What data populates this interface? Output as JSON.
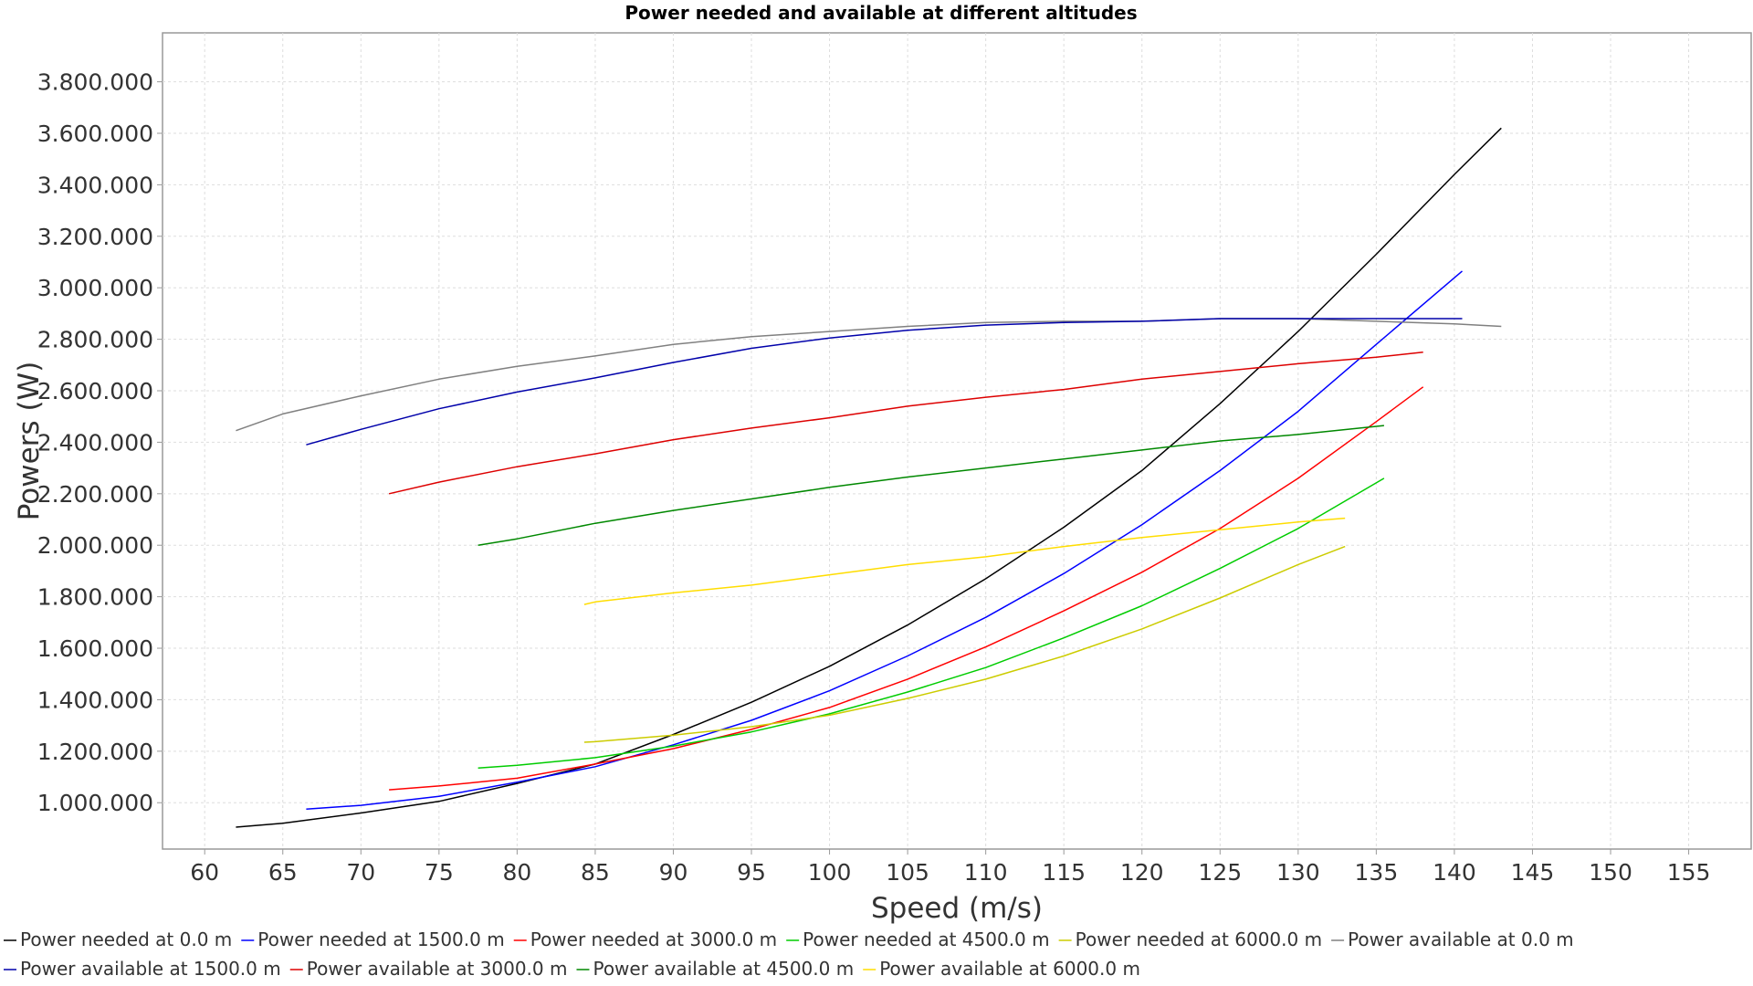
{
  "chart_data": {
    "type": "line",
    "title": "Power needed and available at different altitudes",
    "xlabel": "Speed (m/s)",
    "ylabel": "Powers (W)",
    "xlim": [
      57.3,
      159
    ],
    "ylim": [
      820000,
      3990000
    ],
    "x_ticks": [
      60,
      65,
      70,
      75,
      80,
      85,
      90,
      95,
      100,
      105,
      110,
      115,
      120,
      125,
      130,
      135,
      140,
      145,
      150,
      155
    ],
    "x_tick_labels": [
      "60",
      "65",
      "70",
      "75",
      "80",
      "85",
      "90",
      "95",
      "100",
      "105",
      "110",
      "115",
      "120",
      "125",
      "130",
      "135",
      "140",
      "145",
      "150",
      "155"
    ],
    "y_ticks": [
      1000000,
      1200000,
      1400000,
      1600000,
      1800000,
      2000000,
      2200000,
      2400000,
      2600000,
      2800000,
      3000000,
      3200000,
      3400000,
      3600000,
      3800000
    ],
    "y_tick_labels": [
      "1.000.000",
      "1.200.000",
      "1.400.000",
      "1.600.000",
      "1.800.000",
      "2.000.000",
      "2.200.000",
      "2.400.000",
      "2.600.000",
      "2.800.000",
      "3.000.000",
      "3.200.000",
      "3.400.000",
      "3.600.000",
      "3.800.000"
    ],
    "grid": true,
    "legend_position": "bottom",
    "series": [
      {
        "name": "Power needed at 0.0 m",
        "color": "#000000",
        "x": [
          62,
          65,
          70,
          75,
          80,
          85,
          90,
          95,
          100,
          105,
          110,
          115,
          120,
          125,
          130,
          135,
          140,
          143
        ],
        "y": [
          905000,
          920000,
          960000,
          1005000,
          1075000,
          1150000,
          1265000,
          1390000,
          1530000,
          1690000,
          1870000,
          2070000,
          2290000,
          2550000,
          2830000,
          3130000,
          3440000,
          3620000
        ]
      },
      {
        "name": "Power needed at 1500.0 m",
        "color": "#0000ff",
        "x": [
          66.5,
          70,
          75,
          80,
          85,
          90,
          95,
          100,
          105,
          110,
          115,
          120,
          125,
          130,
          135,
          140.5
        ],
        "y": [
          975000,
          990000,
          1025000,
          1080000,
          1140000,
          1225000,
          1320000,
          1435000,
          1570000,
          1720000,
          1890000,
          2080000,
          2290000,
          2520000,
          2780000,
          3065000
        ]
      },
      {
        "name": "Power needed at 3000.0 m",
        "color": "#ff0000",
        "x": [
          71.8,
          75,
          80,
          85,
          90,
          95,
          100,
          105,
          110,
          115,
          120,
          125,
          130,
          135,
          138
        ],
        "y": [
          1050000,
          1065000,
          1095000,
          1150000,
          1210000,
          1285000,
          1370000,
          1480000,
          1605000,
          1745000,
          1895000,
          2065000,
          2260000,
          2480000,
          2615000
        ]
      },
      {
        "name": "Power needed at 4500.0 m",
        "color": "#00cc00",
        "x": [
          77.5,
          80,
          85,
          90,
          95,
          100,
          105,
          110,
          115,
          120,
          125,
          130,
          135.5
        ],
        "y": [
          1135000,
          1145000,
          1175000,
          1220000,
          1275000,
          1345000,
          1430000,
          1525000,
          1640000,
          1765000,
          1910000,
          2065000,
          2260000
        ]
      },
      {
        "name": "Power needed at 6000.0 m",
        "color": "#cccc00",
        "x": [
          84.3,
          85,
          90,
          95,
          100,
          105,
          110,
          115,
          120,
          125,
          130,
          133
        ],
        "y": [
          1235000,
          1237000,
          1262000,
          1295000,
          1340000,
          1405000,
          1480000,
          1570000,
          1675000,
          1795000,
          1925000,
          1995000
        ]
      },
      {
        "name": "Power available at 0.0 m",
        "color": "#808080",
        "x": [
          62,
          65,
          70,
          75,
          80,
          85,
          90,
          95,
          100,
          105,
          110,
          115,
          120,
          125,
          130,
          135,
          140,
          143
        ],
        "y": [
          2445000,
          2510000,
          2580000,
          2645000,
          2695000,
          2735000,
          2780000,
          2810000,
          2830000,
          2850000,
          2865000,
          2870000,
          2870000,
          2880000,
          2880000,
          2870000,
          2860000,
          2850000
        ]
      },
      {
        "name": "Power available at 1500.0 m",
        "color": "#0000aa",
        "x": [
          66.5,
          70,
          75,
          80,
          85,
          90,
          95,
          100,
          105,
          110,
          115,
          120,
          125,
          130,
          135,
          140.5
        ],
        "y": [
          2390000,
          2450000,
          2530000,
          2595000,
          2650000,
          2710000,
          2765000,
          2805000,
          2835000,
          2855000,
          2865000,
          2870000,
          2880000,
          2880000,
          2880000,
          2880000
        ]
      },
      {
        "name": "Power available at 3000.0 m",
        "color": "#dd0000",
        "x": [
          71.8,
          75,
          80,
          85,
          90,
          95,
          100,
          105,
          110,
          115,
          120,
          125,
          130,
          135,
          138
        ],
        "y": [
          2200000,
          2245000,
          2305000,
          2355000,
          2410000,
          2455000,
          2495000,
          2540000,
          2575000,
          2605000,
          2645000,
          2675000,
          2705000,
          2730000,
          2750000
        ]
      },
      {
        "name": "Power available at 4500.0 m",
        "color": "#008800",
        "x": [
          77.5,
          80,
          85,
          90,
          95,
          100,
          105,
          110,
          115,
          120,
          125,
          130,
          135.5
        ],
        "y": [
          2000000,
          2025000,
          2085000,
          2135000,
          2180000,
          2225000,
          2265000,
          2300000,
          2335000,
          2370000,
          2405000,
          2430000,
          2465000
        ]
      },
      {
        "name": "Power available at 6000.0 m",
        "color": "#ffdd00",
        "x": [
          84.3,
          85,
          90,
          95,
          100,
          105,
          110,
          115,
          120,
          125,
          130,
          133
        ],
        "y": [
          1770000,
          1780000,
          1815000,
          1845000,
          1885000,
          1925000,
          1955000,
          1995000,
          2030000,
          2060000,
          2090000,
          2105000
        ]
      }
    ]
  }
}
